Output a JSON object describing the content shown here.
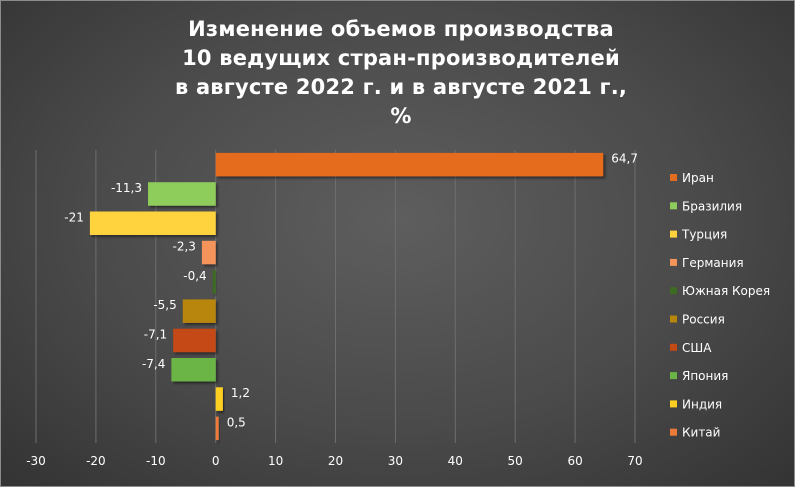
{
  "title_lines": [
    "Изменение объемов производства",
    "10 ведущих стран-производителей",
    "в августе 2022 г. и в августе 2021 г.,",
    "%"
  ],
  "chart_data": {
    "type": "bar",
    "orientation": "horizontal",
    "title": "Изменение объемов производства 10 ведущих стран-производителей в августе 2022 г. и в августе 2021 г., %",
    "categories": [
      "Иран",
      "Бразилия",
      "Турция",
      "Германия",
      "Южная Корея",
      "Россия",
      "США",
      "Япония",
      "Индия",
      "Китай"
    ],
    "values": [
      64.7,
      -11.3,
      -21,
      -2.3,
      -0.4,
      -5.5,
      -7.1,
      -7.4,
      1.2,
      0.5
    ],
    "value_labels": [
      "64,7",
      "-11,3",
      "-21",
      "-2,3",
      "-0,4",
      "-5,5",
      "-7,1",
      "-7,4",
      "1,2",
      "0,5"
    ],
    "colors": [
      "#E46C1E",
      "#8ECC5C",
      "#FFD33C",
      "#F4935A",
      "#3E6B22",
      "#B8860B",
      "#C44A14",
      "#6AB545",
      "#FFD022",
      "#EE7A3A"
    ],
    "xlim": [
      -30,
      70
    ],
    "xticks": [
      -30,
      -20,
      -10,
      0,
      10,
      20,
      30,
      40,
      50,
      60,
      70
    ],
    "grid": true,
    "legend": "right"
  }
}
